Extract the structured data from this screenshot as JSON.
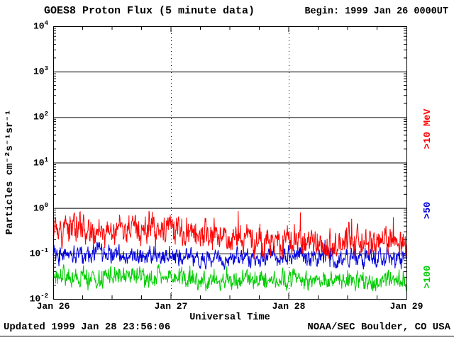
{
  "chart_data": {
    "type": "line",
    "title": "GOES8 Proton Flux (5 minute data)",
    "begin_label": "Begin: 1999 Jan 26 0000UT",
    "xlabel": "Universal Time",
    "ylabel": "Particles cm⁻²s⁻¹sr⁻¹",
    "updated_label": "Updated 1999 Jan 28 23:56:06",
    "credit_label": "NOAA/SEC Boulder, CO USA",
    "y_scale": "log",
    "ylim": [
      0.01,
      10000
    ],
    "y_tick_exponents": [
      4,
      3,
      2,
      1,
      0,
      -1,
      -2
    ],
    "x_ticks": [
      "Jan 26",
      "Jan 27",
      "Jan 28",
      "Jan 29"
    ],
    "x_range_days": 3,
    "grid": {
      "horizontal": "solid-per-decade",
      "vertical": "dotted-at-day-boundaries"
    },
    "legend_position": "right-rotated",
    "samples_per_series": 864,
    "noise_seed": 1999,
    "series": [
      {
        "name": ">10 MeV",
        "color": "#ff0000",
        "trend_log10": [
          -0.45,
          -0.45,
          -0.5,
          -0.45,
          -0.5,
          -0.55,
          -0.65,
          -0.75,
          -0.7,
          -0.75,
          -0.75,
          -0.78,
          -0.72
        ],
        "noise_log10": 0.28,
        "min_log10": -1.15,
        "max_log10": 0.0
      },
      {
        "name": ">50",
        "color": "#0000dd",
        "trend_log10": [
          -1.0,
          -1.05,
          -1.0,
          -1.05,
          -1.05,
          -1.1,
          -1.1,
          -1.1,
          -1.05,
          -1.1,
          -1.1,
          -1.08,
          -1.05
        ],
        "noise_log10": 0.18,
        "min_log10": -1.35,
        "max_log10": -0.62
      },
      {
        "name": ">100",
        "color": "#00cc00",
        "trend_log10": [
          -1.5,
          -1.55,
          -1.5,
          -1.55,
          -1.55,
          -1.6,
          -1.55,
          -1.6,
          -1.55,
          -1.6,
          -1.6,
          -1.58,
          -1.55
        ],
        "noise_log10": 0.19,
        "min_log10": -1.83,
        "max_log10": -1.02
      }
    ]
  }
}
